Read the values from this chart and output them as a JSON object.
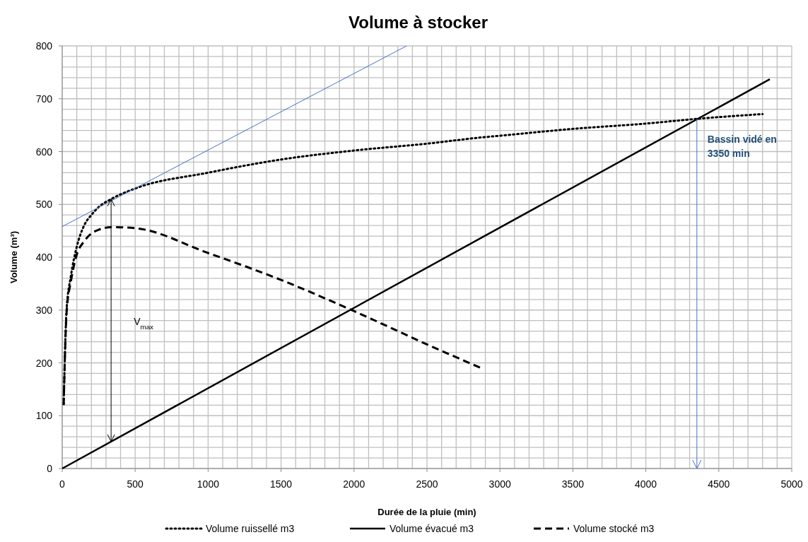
{
  "chart_data": {
    "type": "line",
    "title": "Volume à stocker",
    "xlabel": "Durée de la pluie (min)",
    "ylabel": "Volume (m³)",
    "xlim": [
      0,
      5000
    ],
    "xticks": [
      0,
      {
        "value": 100,
        "label": null
      },
      {
        "value": 200,
        "label": null
      },
      {
        "value": 300,
        "label": null
      },
      {
        "value": 400,
        "label": null
      },
      500,
      {
        "value": 600,
        "label": null
      },
      {
        "value": 700,
        "label": null
      },
      {
        "value": 800,
        "label": null
      },
      {
        "value": 900,
        "label": null
      },
      1000,
      {
        "value": 1100,
        "label": null
      },
      {
        "value": 1200,
        "label": null
      },
      {
        "value": 1300,
        "label": null
      },
      {
        "value": 1400,
        "label": null
      },
      1500,
      {
        "value": 1600,
        "label": null
      },
      {
        "value": 1700,
        "label": null
      },
      {
        "value": 1800,
        "label": null
      },
      {
        "value": 1900,
        "label": null
      },
      2000,
      {
        "value": 2100,
        "label": null
      },
      {
        "value": 2200,
        "label": null
      },
      {
        "value": 2300,
        "label": null
      },
      {
        "value": 2400,
        "label": null
      },
      2500,
      {
        "value": 2600,
        "label": null
      },
      {
        "value": 2700,
        "label": null
      },
      {
        "value": 2800,
        "label": null
      },
      {
        "value": 2900,
        "label": null
      },
      3000,
      {
        "value": 3100,
        "label": null
      },
      {
        "value": 3200,
        "label": null
      },
      {
        "value": 3300,
        "label": null
      },
      {
        "value": 3400,
        "label": null
      },
      3500,
      {
        "value": 3600,
        "label": null
      },
      {
        "value": 3700,
        "label": null
      },
      {
        "value": 3800,
        "label": null
      },
      {
        "value": 3900,
        "label": null
      },
      4000,
      {
        "value": 4100,
        "label": null
      },
      {
        "value": 4200,
        "label": null
      },
      {
        "value": 4300,
        "label": null
      },
      {
        "value": 4400,
        "label": null
      },
      4500,
      {
        "value": 4600,
        "label": null
      },
      {
        "value": 4700,
        "label": null
      },
      {
        "value": 4800,
        "label": null
      },
      {
        "value": 4900,
        "label": null
      },
      5000
    ],
    "ylim": [
      0,
      800
    ],
    "yticks": [
      0,
      {
        "value": 20,
        "label": null
      },
      {
        "value": 40,
        "label": null
      },
      {
        "value": 60,
        "label": null
      },
      {
        "value": 80,
        "label": null
      },
      100,
      {
        "value": 120,
        "label": null
      },
      {
        "value": 140,
        "label": null
      },
      {
        "value": 160,
        "label": null
      },
      {
        "value": 180,
        "label": null
      },
      200,
      {
        "value": 220,
        "label": null
      },
      {
        "value": 240,
        "label": null
      },
      {
        "value": 260,
        "label": null
      },
      {
        "value": 280,
        "label": null
      },
      300,
      {
        "value": 320,
        "label": null
      },
      {
        "value": 340,
        "label": null
      },
      {
        "value": 360,
        "label": null
      },
      {
        "value": 380,
        "label": null
      },
      400,
      {
        "value": 420,
        "label": null
      },
      {
        "value": 440,
        "label": null
      },
      {
        "value": 460,
        "label": null
      },
      {
        "value": 480,
        "label": null
      },
      500,
      {
        "value": 520,
        "label": null
      },
      {
        "value": 540,
        "label": null
      },
      {
        "value": 560,
        "label": null
      },
      {
        "value": 580,
        "label": null
      },
      600,
      {
        "value": 620,
        "label": null
      },
      {
        "value": 640,
        "label": null
      },
      {
        "value": 660,
        "label": null
      },
      {
        "value": 680,
        "label": null
      },
      700,
      {
        "value": 720,
        "label": null
      },
      {
        "value": 740,
        "label": null
      },
      {
        "value": 760,
        "label": null
      },
      {
        "value": 780,
        "label": null
      },
      800
    ],
    "grid": true,
    "legend": "bottom",
    "marker": "none",
    "series": [
      {
        "name": "Volume ruissellé m3",
        "color": "#000000",
        "line_style": "dotted",
        "x": [
          10,
          30,
          60,
          100,
          150,
          200,
          250,
          335,
          500,
          1000,
          1500,
          2000,
          2500,
          2880,
          3000,
          3500,
          4000,
          4350,
          4800
        ],
        "values": [
          122,
          300,
          365,
          420,
          460,
          480,
          495,
          510,
          530,
          560,
          585,
          602,
          615,
          627,
          630,
          643,
          653,
          662,
          671
        ]
      },
      {
        "name": "Volume évacué m3",
        "color": "#000000",
        "line_style": "solid",
        "x": [
          0,
          2880,
          4850
        ],
        "values": [
          0,
          438,
          737
        ]
      },
      {
        "name": "Volume stocké m3",
        "color": "#000000",
        "line_style": "dashed",
        "x": [
          10,
          30,
          60,
          100,
          150,
          200,
          250,
          335,
          500,
          1000,
          1500,
          2000,
          2500,
          2880
        ],
        "values": [
          120,
          295,
          355,
          405,
          430,
          445,
          452,
          457,
          455,
          408,
          357,
          298,
          235,
          189
        ]
      },
      {
        "color": "#4472c4",
        "line_style": "solid",
        "x": [
          0,
          2360
        ],
        "values": [
          458,
          800
        ]
      }
    ],
    "ref_lines": [
      {
        "axis": "x",
        "value": 4350,
        "label": "Bassin vidé en 3350 min",
        "color": "#4472c4"
      }
    ],
    "annotations": [
      "V$_{max}$"
    ]
  }
}
